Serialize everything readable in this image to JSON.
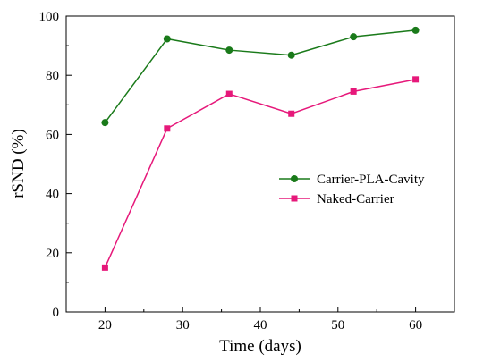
{
  "chart_data": {
    "type": "line",
    "xlabel": "Time (days)",
    "ylabel": "rSND (%)",
    "xlim": [
      15,
      65
    ],
    "ylim": [
      0,
      100
    ],
    "x_ticks": [
      20,
      30,
      40,
      50,
      60
    ],
    "y_ticks": [
      0,
      20,
      40,
      60,
      80,
      100
    ],
    "grid": false,
    "legend_position": "center-right",
    "series": [
      {
        "name": "Carrier-PLA-Cavity",
        "color": "#1a7a1a",
        "marker": "circle",
        "x": [
          20,
          28,
          36,
          44,
          52,
          60
        ],
        "y": [
          64.0,
          92.3,
          88.5,
          86.8,
          93.0,
          95.2
        ]
      },
      {
        "name": "Naked-Carrier",
        "color": "#e6187a",
        "marker": "square",
        "x": [
          20,
          28,
          36,
          44,
          52,
          60
        ],
        "y": [
          15.0,
          62.0,
          73.7,
          67.0,
          74.5,
          78.6
        ]
      }
    ]
  }
}
